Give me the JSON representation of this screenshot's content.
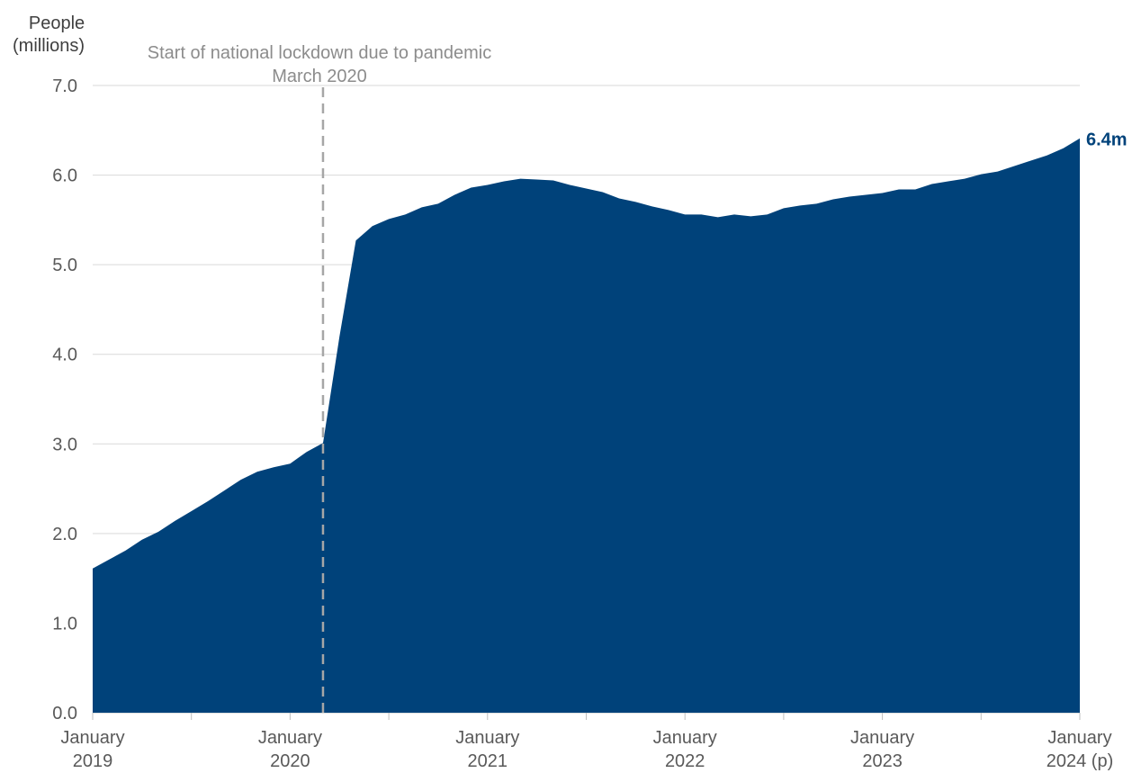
{
  "chart_data": {
    "type": "area",
    "ylabel": "People (millions)",
    "ylabel_lines": [
      "People",
      "(millions)"
    ],
    "ylim": [
      0,
      7
    ],
    "yticks": [
      "0.0",
      "1.0",
      "2.0",
      "3.0",
      "4.0",
      "5.0",
      "6.0",
      "7.0"
    ],
    "xtick_labels": [
      [
        "January",
        "2019"
      ],
      [
        "January",
        "2020"
      ],
      [
        "January",
        "2021"
      ],
      [
        "January",
        "2022"
      ],
      [
        "January",
        "2023"
      ],
      [
        "January",
        "2024 (p)"
      ]
    ],
    "x_start": "January 2019",
    "x_end": "January 2024",
    "frequency": "monthly",
    "grid": true,
    "color": "#00427A",
    "values": [
      1.61,
      1.71,
      1.81,
      1.93,
      2.02,
      2.14,
      2.25,
      2.36,
      2.48,
      2.6,
      2.69,
      2.74,
      2.78,
      2.91,
      3.01,
      4.2,
      5.27,
      5.43,
      5.51,
      5.56,
      5.64,
      5.68,
      5.78,
      5.86,
      5.89,
      5.93,
      5.96,
      5.95,
      5.94,
      5.89,
      5.85,
      5.81,
      5.74,
      5.7,
      5.65,
      5.61,
      5.56,
      5.56,
      5.53,
      5.56,
      5.54,
      5.56,
      5.63,
      5.66,
      5.68,
      5.73,
      5.76,
      5.78,
      5.8,
      5.84,
      5.84,
      5.9,
      5.93,
      5.96,
      6.01,
      6.04,
      6.1,
      6.16,
      6.22,
      6.3,
      6.41
    ],
    "end_label": "6.4m",
    "annotation": {
      "month_index": 14,
      "lines": [
        "Start of national lockdown due to pandemic",
        "March 2020"
      ]
    }
  }
}
